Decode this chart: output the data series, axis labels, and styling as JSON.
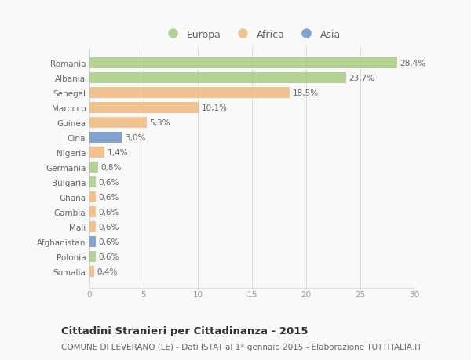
{
  "categories": [
    "Romania",
    "Albania",
    "Senegal",
    "Marocco",
    "Guinea",
    "Cina",
    "Nigeria",
    "Germania",
    "Bulgaria",
    "Ghana",
    "Gambia",
    "Mali",
    "Afghanistan",
    "Polonia",
    "Somalia"
  ],
  "values": [
    28.4,
    23.7,
    18.5,
    10.1,
    5.3,
    3.0,
    1.4,
    0.8,
    0.6,
    0.6,
    0.6,
    0.6,
    0.6,
    0.6,
    0.4
  ],
  "labels": [
    "28,4%",
    "23,7%",
    "18,5%",
    "10,1%",
    "5,3%",
    "3,0%",
    "1,4%",
    "0,8%",
    "0,6%",
    "0,6%",
    "0,6%",
    "0,6%",
    "0,6%",
    "0,6%",
    "0,4%"
  ],
  "continents": [
    "Europa",
    "Europa",
    "Africa",
    "Africa",
    "Africa",
    "Asia",
    "Africa",
    "Europa",
    "Europa",
    "Africa",
    "Africa",
    "Africa",
    "Asia",
    "Europa",
    "Africa"
  ],
  "colors": {
    "Europa": "#a8c97f",
    "Africa": "#f0b87a",
    "Asia": "#6a8fc8"
  },
  "legend_order": [
    "Europa",
    "Africa",
    "Asia"
  ],
  "xlim": [
    0,
    30
  ],
  "xticks": [
    0,
    5,
    10,
    15,
    20,
    25,
    30
  ],
  "title": "Cittadini Stranieri per Cittadinanza - 2015",
  "subtitle": "COMUNE DI LEVERANO (LE) - Dati ISTAT al 1° gennaio 2015 - Elaborazione TUTTITALIA.IT",
  "bg_color": "#f9f9f9",
  "bar_height": 0.75,
  "label_fontsize": 7.5,
  "tick_fontsize": 7.5,
  "title_fontsize": 9.5,
  "subtitle_fontsize": 7.5
}
